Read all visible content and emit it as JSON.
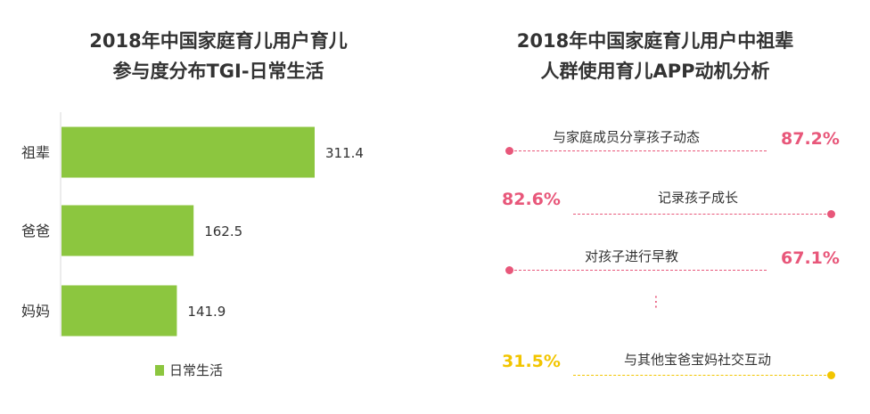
{
  "left_panel": {
    "title_line1": "2018年中国家庭育儿用户育儿",
    "title_line2": "参与度分布TGI-日常生活"
  },
  "right_panel": {
    "title_line1": "2018年中国家庭育儿用户中祖辈",
    "title_line2": "人群使用育儿APP动机分析"
  },
  "chart_data": [
    {
      "type": "bar",
      "orientation": "horizontal",
      "title": "2018年中国家庭育儿用户育儿参与度分布TGI-日常生活",
      "categories": [
        "祖辈",
        "爸爸",
        "妈妈"
      ],
      "series": [
        {
          "name": "日常生活",
          "values": [
            311.4,
            162.5,
            141.9
          ],
          "color": "#8cc63f"
        }
      ],
      "value_labels": [
        "311.4",
        "162.5",
        "141.9"
      ],
      "xlim": [
        0,
        330
      ],
      "legend": "bottom",
      "grid": false
    },
    {
      "type": "table",
      "title": "2018年中国家庭育儿用户中祖辈人群使用育儿APP动机分析",
      "rows": [
        {
          "label": "与家庭成员分享孩子动态",
          "value": 87.2,
          "display": "87.2%",
          "color": "#e8577a"
        },
        {
          "label": "记录孩子成长",
          "value": 82.6,
          "display": "82.6%",
          "color": "#e8577a"
        },
        {
          "label": "对孩子进行早教",
          "value": 67.1,
          "display": "67.1%",
          "color": "#e8577a"
        },
        {
          "label": "与其他宝爸宝妈社交互动",
          "value": 31.5,
          "display": "31.5%",
          "color": "#f2c500"
        }
      ],
      "ellipsis": "⋮"
    }
  ]
}
